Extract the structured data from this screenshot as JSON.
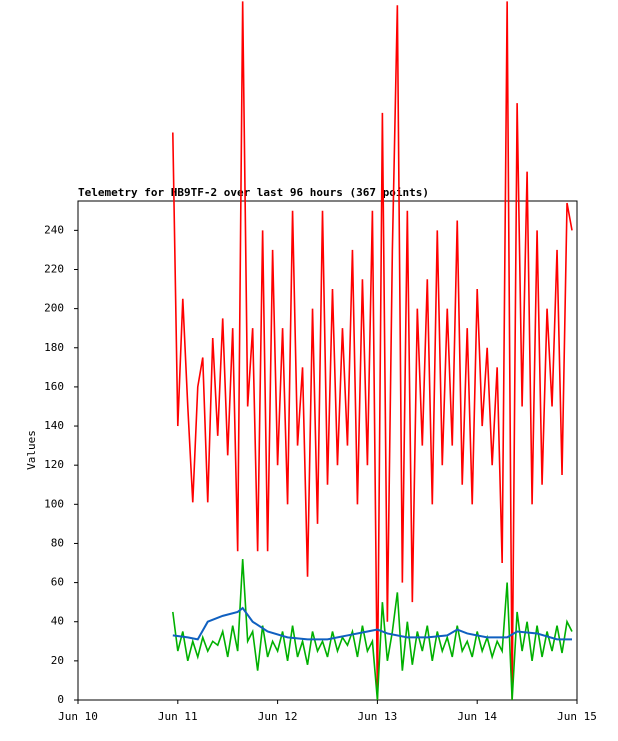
{
  "chart_data": {
    "type": "line",
    "title": "Telemetry for HB9TF-2 over last 96 hours (367 points)",
    "ylabel": "Values",
    "x": [
      0.95,
      1.0,
      1.05,
      1.1,
      1.15,
      1.2,
      1.25,
      1.3,
      1.35,
      1.4,
      1.45,
      1.5,
      1.55,
      1.6,
      1.65,
      1.7,
      1.75,
      1.8,
      1.85,
      1.9,
      1.95,
      2.0,
      2.05,
      2.1,
      2.15,
      2.2,
      2.25,
      2.3,
      2.35,
      2.4,
      2.45,
      2.5,
      2.55,
      2.6,
      2.65,
      2.7,
      2.75,
      2.8,
      2.85,
      2.9,
      2.95,
      3.0,
      3.05,
      3.1,
      3.15,
      3.2,
      3.25,
      3.3,
      3.35,
      3.4,
      3.45,
      3.5,
      3.55,
      3.6,
      3.65,
      3.7,
      3.75,
      3.8,
      3.85,
      3.9,
      3.95,
      4.0,
      4.05,
      4.1,
      4.15,
      4.2,
      4.25,
      4.3,
      4.35,
      4.4,
      4.45,
      4.5,
      4.55,
      4.6,
      4.65,
      4.7,
      4.75,
      4.8,
      4.85,
      4.9,
      4.95
    ],
    "series": [
      {
        "color": "#ff0000",
        "values": [
          290,
          140,
          205,
          150,
          101,
          160,
          175,
          101,
          185,
          135,
          195,
          125,
          190,
          76,
          357,
          150,
          190,
          76,
          240,
          76,
          230,
          120,
          190,
          100,
          250,
          130,
          170,
          63,
          200,
          90,
          250,
          110,
          210,
          120,
          190,
          130,
          230,
          100,
          215,
          120,
          250,
          0,
          300,
          40,
          230,
          355,
          60,
          250,
          50,
          200,
          130,
          215,
          100,
          240,
          120,
          200,
          130,
          245,
          110,
          190,
          100,
          210,
          140,
          180,
          120,
          170,
          70,
          357,
          0,
          305,
          150,
          270,
          100,
          240,
          110,
          200,
          150,
          230,
          115,
          254,
          240
        ]
      },
      {
        "color": "#00b000",
        "values": [
          45,
          25,
          35,
          20,
          30,
          22,
          32,
          25,
          30,
          28,
          35,
          22,
          38,
          25,
          72,
          30,
          35,
          15,
          38,
          22,
          30,
          25,
          35,
          20,
          38,
          22,
          30,
          18,
          35,
          25,
          30,
          22,
          35,
          25,
          32,
          28,
          35,
          22,
          38,
          25,
          30,
          0,
          50,
          20,
          35,
          55,
          15,
          40,
          18,
          35,
          25,
          38,
          20,
          35,
          25,
          32,
          22,
          38,
          25,
          30,
          22,
          35,
          25,
          32,
          22,
          30,
          25,
          60,
          0,
          45,
          25,
          40,
          20,
          38,
          22,
          35,
          25,
          38,
          24,
          40,
          35
        ]
      },
      {
        "color": "#1060c0",
        "x": [
          0.95,
          1.1,
          1.2,
          1.3,
          1.45,
          1.6,
          1.65,
          1.75,
          1.9,
          2.1,
          2.3,
          2.5,
          2.7,
          2.9,
          3.0,
          3.1,
          3.3,
          3.5,
          3.7,
          3.8,
          3.9,
          4.1,
          4.3,
          4.4,
          4.6,
          4.8,
          4.95
        ],
        "values": [
          33,
          32,
          31,
          40,
          43,
          45,
          47,
          40,
          35,
          32,
          31,
          31,
          33,
          35,
          36,
          34,
          32,
          32,
          33,
          36,
          34,
          32,
          32,
          35,
          34,
          31,
          31
        ]
      }
    ],
    "xlim": [
      0,
      5
    ],
    "xticks": [
      {
        "value": 0,
        "label": "Jun 10"
      },
      {
        "value": 1,
        "label": "Jun 11"
      },
      {
        "value": 2,
        "label": "Jun 12"
      },
      {
        "value": 3,
        "label": "Jun 13"
      },
      {
        "value": 4,
        "label": "Jun 14"
      },
      {
        "value": 5,
        "label": "Jun 15"
      }
    ],
    "ylim": [
      0,
      255
    ],
    "yticks": [
      0,
      20,
      40,
      60,
      80,
      100,
      120,
      140,
      160,
      180,
      200,
      220,
      240
    ]
  }
}
